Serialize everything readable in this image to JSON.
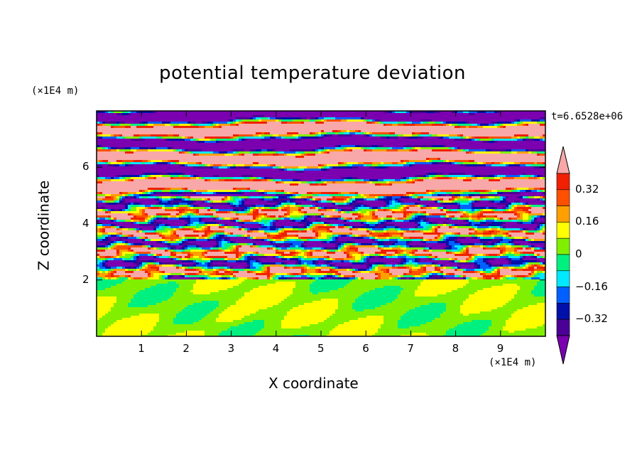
{
  "chart_data": {
    "type": "heatmap",
    "title": "potential temperature deviation",
    "xlabel": "X coordinate",
    "ylabel": "Z coordinate",
    "x_unit": "(×1E4 m)",
    "y_unit": "(×1E4 m)",
    "time_label": "t=6.6528e+06",
    "xlim": [
      0,
      10
    ],
    "ylim": [
      0,
      8
    ],
    "x_ticks": [
      "1",
      "2",
      "3",
      "4",
      "5",
      "6",
      "7",
      "8",
      "9"
    ],
    "y_ticks": [
      "2",
      "4",
      "6"
    ],
    "colorbar": {
      "levels": [
        -0.4,
        -0.32,
        -0.24,
        -0.16,
        -0.08,
        0,
        0.08,
        0.16,
        0.24,
        0.32,
        0.4
      ],
      "labels": [
        "0.32",
        "0.16",
        "0",
        "−0.16",
        "−0.32"
      ],
      "colors": [
        "#7a00b0",
        "#4b0096",
        "#0010a8",
        "#0060ff",
        "#00e8ff",
        "#00f080",
        "#80f000",
        "#ffff00",
        "#ffa000",
        "#ff5000",
        "#f02000",
        "#f8a8a8"
      ],
      "extend": "both"
    },
    "description_layers": {
      "bottom_layer_z": [
        0,
        2
      ],
      "turbulent_layer_z": [
        2,
        5
      ],
      "banded_layer_z": [
        5,
        8
      ]
    }
  }
}
